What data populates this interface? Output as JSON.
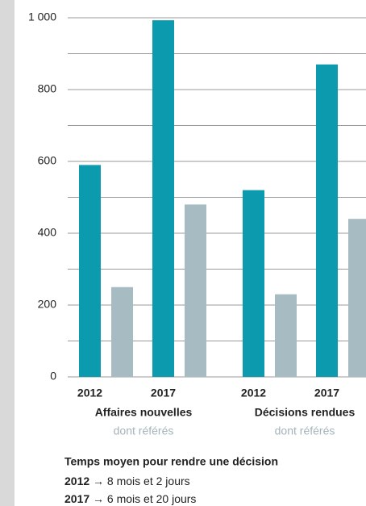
{
  "chart_data": {
    "type": "bar",
    "categories": [
      "2012",
      "2017",
      "2012",
      "2017"
    ],
    "groups": [
      {
        "name": "Affaires nouvelles",
        "note": "dont référés"
      },
      {
        "name": "Décisions rendues",
        "note": "dont référés"
      }
    ],
    "series": [
      {
        "color": "#0b9aae",
        "values": [
          590,
          993,
          520,
          870
        ]
      },
      {
        "color": "#a7bbc2",
        "values": [
          250,
          480,
          230,
          440
        ]
      }
    ],
    "ylim": [
      0,
      1000
    ],
    "yticks": [
      0,
      200,
      400,
      600,
      800,
      {
        "value": 1000,
        "label": "1 000"
      }
    ],
    "minor_yticks": [
      100,
      300,
      500,
      700,
      900
    ],
    "grid": true,
    "footnote": {
      "title": "Temps moyen pour rendre une décision",
      "lines": [
        {
          "year": "2012",
          "text": "→ 8 mois et 2 jours"
        },
        {
          "year": "2017",
          "text": "→ 6 mois et 20 jours"
        }
      ]
    }
  }
}
